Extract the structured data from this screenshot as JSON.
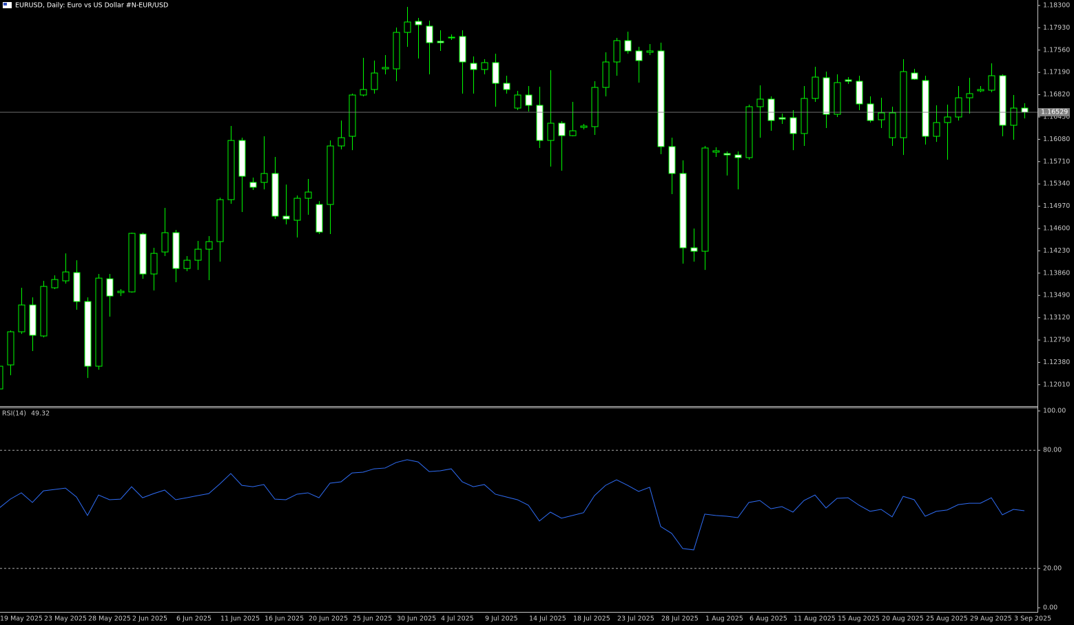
{
  "chart_data": [
    {
      "type": "candlestick",
      "title": "EURUSD, Daily:  Euro vs US Dollar #N-EUR/USD",
      "categories": [
        "19 May 2025",
        null,
        null,
        null,
        "23 May 2025",
        null,
        null,
        null,
        "28 May 2025",
        null,
        null,
        null,
        "2 Jun 2025",
        null,
        null,
        null,
        "6 Jun 2025",
        null,
        null,
        null,
        "11 Jun 2025",
        null,
        null,
        null,
        "16 Jun 2025",
        null,
        null,
        null,
        "20 Jun 2025",
        null,
        null,
        null,
        "25 Jun 2025",
        null,
        null,
        null,
        "30 Jun 2025",
        null,
        null,
        null,
        "4 Jul 2025",
        null,
        null,
        null,
        "9 Jul 2025",
        null,
        null,
        null,
        "14 Jul 2025",
        null,
        null,
        null,
        "18 Jul 2025",
        null,
        null,
        null,
        "23 Jul 2025",
        null,
        null,
        null,
        "28 Jul 2025",
        null,
        null,
        null,
        "1 Aug 2025",
        null,
        null,
        null,
        "6 Aug 2025",
        null,
        null,
        null,
        "11 Aug 2025",
        null,
        null,
        null,
        "15 Aug 2025",
        null,
        null,
        null,
        "20 Aug 2025",
        null,
        null,
        null,
        "25 Aug 2025",
        null,
        null,
        null,
        "29 Aug 2025",
        null,
        null,
        null,
        "3 Sep 2025",
        null
      ],
      "open": [
        1.11939,
        1.12338,
        1.12887,
        1.13332,
        1.12818,
        1.13617,
        1.13732,
        1.13869,
        1.13389,
        1.12316,
        1.13766,
        1.13537,
        1.13549,
        1.14508,
        1.13846,
        1.14211,
        1.14531,
        1.13937,
        1.14074,
        1.14257,
        1.14383,
        1.15079,
        1.16061,
        1.15365,
        1.15365,
        1.15513,
        1.14805,
        1.14737,
        1.15102,
        1.14999,
        1.14999,
        1.1597,
        1.1613,
        1.16815,
        1.16906,
        1.17249,
        1.17249,
        1.17854,
        1.18037,
        1.17957,
        1.17706,
        1.17763,
        1.17786,
        1.1734,
        1.17238,
        1.17352,
        1.17009,
        1.16598,
        1.16815,
        1.16644,
        1.16061,
        1.16347,
        1.16141,
        1.16278,
        1.1629,
        1.16941,
        1.17363,
        1.17717,
        1.17546,
        1.17523,
        1.17546,
        1.15959,
        1.15513,
        1.1428,
        1.14223,
        1.15867,
        1.15844,
        1.15821,
        1.15776,
        1.16621,
        1.16747,
        1.16438,
        1.16438,
        1.16176,
        1.16758,
        1.17101,
        1.16495,
        1.17066,
        1.17043,
        1.16667,
        1.16404,
        1.16107,
        1.16107,
        1.1718,
        1.17055,
        1.1613,
        1.16358,
        1.1645,
        1.16769,
        1.16884,
        1.16895,
        1.17135,
        1.16313,
        1.16598
      ],
      "high": [
        1.12361,
        1.12909,
        1.13617,
        1.13458,
        1.13732,
        1.13823,
        1.14188,
        1.14074,
        1.13458,
        1.13846,
        1.13846,
        1.13595,
        1.14531,
        1.14531,
        1.1428,
        1.14942,
        1.14577,
        1.14143,
        1.14394,
        1.14474,
        1.15113,
        1.16301,
        1.16107,
        1.15445,
        1.1613,
        1.15787,
        1.1533,
        1.15148,
        1.15422,
        1.15056,
        1.16061,
        1.16392,
        1.16838,
        1.17432,
        1.17386,
        1.17477,
        1.17934,
        1.18277,
        1.18094,
        1.18048,
        1.17889,
        1.1782,
        1.17889,
        1.17455,
        1.17409,
        1.175,
        1.17135,
        1.16884,
        1.16963,
        1.16952,
        1.17226,
        1.16381,
        1.16701,
        1.16335,
        1.17043,
        1.17523,
        1.17763,
        1.17866,
        1.17614,
        1.1766,
        1.17683,
        1.16107,
        1.1573,
        1.146,
        1.1597,
        1.15947,
        1.15879,
        1.15879,
        1.16655,
        1.16975,
        1.16792,
        1.16507,
        1.16564,
        1.16963,
        1.17283,
        1.17203,
        1.17158,
        1.17112,
        1.17135,
        1.16792,
        1.16769,
        1.16621,
        1.17409,
        1.17249,
        1.17135,
        1.16644,
        1.16655,
        1.16963,
        1.17101,
        1.16963,
        1.1734,
        1.17158,
        1.16815,
        1.16678
      ],
      "low": [
        1.11882,
        1.12167,
        1.12852,
        1.12567,
        1.12795,
        1.13595,
        1.13686,
        1.13252,
        1.12121,
        1.12258,
        1.13138,
        1.1348,
        1.13537,
        1.13766,
        1.13572,
        1.14143,
        1.13709,
        1.13892,
        1.13914,
        1.13743,
        1.14051,
        1.15011,
        1.14874,
        1.15239,
        1.1525,
        1.14759,
        1.14668,
        1.14451,
        1.14828,
        1.14508,
        1.14508,
        1.15913,
        1.15901,
        1.16792,
        1.16838,
        1.17158,
        1.17043,
        1.17614,
        1.1742,
        1.17158,
        1.17546,
        1.17729,
        1.16838,
        1.16838,
        1.17158,
        1.16621,
        1.16838,
        1.16564,
        1.16541,
        1.15936,
        1.15627,
        1.15559,
        1.1613,
        1.16244,
        1.16153,
        1.16792,
        1.17135,
        1.175,
        1.17021,
        1.17477,
        1.15833,
        1.15171,
        1.14017,
        1.14051,
        1.13914,
        1.15787,
        1.15479,
        1.1525,
        1.15742,
        1.16107,
        1.16221,
        1.16335,
        1.15901,
        1.1597,
        1.16701,
        1.16267,
        1.1645,
        1.16998,
        1.16564,
        1.16358,
        1.16267,
        1.1597,
        1.15821,
        1.17066,
        1.15993,
        1.16038,
        1.15742,
        1.16392,
        1.16507,
        1.16861,
        1.16861,
        1.1613,
        1.16073,
        1.16427
      ],
      "close": [
        1.12316,
        1.12887,
        1.13332,
        1.12829,
        1.1364,
        1.13754,
        1.1388,
        1.13389,
        1.12316,
        1.13777,
        1.1348,
        1.1356,
        1.1452,
        1.13846,
        1.14188,
        1.14531,
        1.13937,
        1.14074,
        1.14257,
        1.14383,
        1.15079,
        1.16061,
        1.15467,
        1.15285,
        1.15513,
        1.14805,
        1.14759,
        1.15102,
        1.15205,
        1.14542,
        1.1597,
        1.16107,
        1.16815,
        1.16906,
        1.1718,
        1.17272,
        1.17854,
        1.18026,
        1.1798,
        1.17683,
        1.17683,
        1.17774,
        1.17363,
        1.17238,
        1.17352,
        1.17009,
        1.16906,
        1.16815,
        1.16644,
        1.16061,
        1.16347,
        1.16141,
        1.16221,
        1.16301,
        1.16941,
        1.17363,
        1.17717,
        1.17546,
        1.17386,
        1.17546,
        1.15959,
        1.15513,
        1.1428,
        1.14223,
        1.15936,
        1.1589,
        1.15821,
        1.15776,
        1.16621,
        1.16747,
        1.16392,
        1.16415,
        1.16176,
        1.16758,
        1.17112,
        1.16495,
        1.17021,
        1.17043,
        1.16667,
        1.16392,
        1.16518,
        1.16518,
        1.17203,
        1.17078,
        1.1613,
        1.16358,
        1.1645,
        1.16769,
        1.16838,
        1.16906,
        1.17135,
        1.16313,
        1.16598,
        1.16529
      ],
      "ylim": [
        1.11654,
        1.18391
      ],
      "yticks": [
        {
          "value": 1.183,
          "label": "1.18300"
        },
        {
          "value": 1.1793,
          "label": "1.17930"
        },
        {
          "value": 1.1756,
          "label": "1.17560"
        },
        {
          "value": 1.1719,
          "label": "1.17190"
        },
        {
          "value": 1.1682,
          "label": "1.16820"
        },
        {
          "value": 1.1645,
          "label": "1.16450"
        },
        {
          "value": 1.1608,
          "label": "1.16080"
        },
        {
          "value": 1.1571,
          "label": "1.15710"
        },
        {
          "value": 1.1534,
          "label": "1.15340"
        },
        {
          "value": 1.1497,
          "label": "1.14970"
        },
        {
          "value": 1.146,
          "label": "1.14600"
        },
        {
          "value": 1.1423,
          "label": "1.14230"
        },
        {
          "value": 1.1386,
          "label": "1.13860"
        },
        {
          "value": 1.1349,
          "label": "1.13490"
        },
        {
          "value": 1.1312,
          "label": "1.13120"
        },
        {
          "value": 1.1275,
          "label": "1.12750"
        },
        {
          "value": 1.1238,
          "label": "1.12380"
        },
        {
          "value": 1.1201,
          "label": "1.12010"
        }
      ],
      "wick_color": "#00ff00",
      "up_color": "#000000",
      "down_color": "#ffffff"
    },
    {
      "type": "line",
      "series": [
        {
          "name": "RSI(14)",
          "color": "#2f6df6",
          "values": [
            50.7,
            55.2,
            58.4,
            53.5,
            59.4,
            60.1,
            60.8,
            56.3,
            46.9,
            57.3,
            54.9,
            55.2,
            61.5,
            55.9,
            58.0,
            59.8,
            54.9,
            55.9,
            57.0,
            58.0,
            62.9,
            68.2,
            62.2,
            61.5,
            62.6,
            55.2,
            54.9,
            57.7,
            58.4,
            55.9,
            63.3,
            64.0,
            68.5,
            68.9,
            70.6,
            71.0,
            73.8,
            75.2,
            74.1,
            69.2,
            69.6,
            70.6,
            64.0,
            61.5,
            62.6,
            57.7,
            56.3,
            54.9,
            52.1,
            44.1,
            48.6,
            45.5,
            46.9,
            48.3,
            57.0,
            62.2,
            65.0,
            62.2,
            59.1,
            61.2,
            41.3,
            37.8,
            30.1,
            29.4,
            47.6,
            46.9,
            46.5,
            45.8,
            53.5,
            54.5,
            50.3,
            51.4,
            48.6,
            54.5,
            57.3,
            50.7,
            55.6,
            55.9,
            52.1,
            49.0,
            50.0,
            46.2,
            56.6,
            54.9,
            46.5,
            49.0,
            49.7,
            52.4,
            53.1,
            53.1,
            55.9,
            47.2,
            50.0,
            49.32
          ]
        }
      ],
      "ylim": [
        0,
        100
      ],
      "yticks": [
        {
          "value": 100,
          "label": "100.00"
        },
        {
          "value": 80,
          "label": "80.00"
        },
        {
          "value": 20,
          "label": "20.00"
        },
        {
          "value": 0,
          "label": "0.00"
        }
      ]
    }
  ]
}
